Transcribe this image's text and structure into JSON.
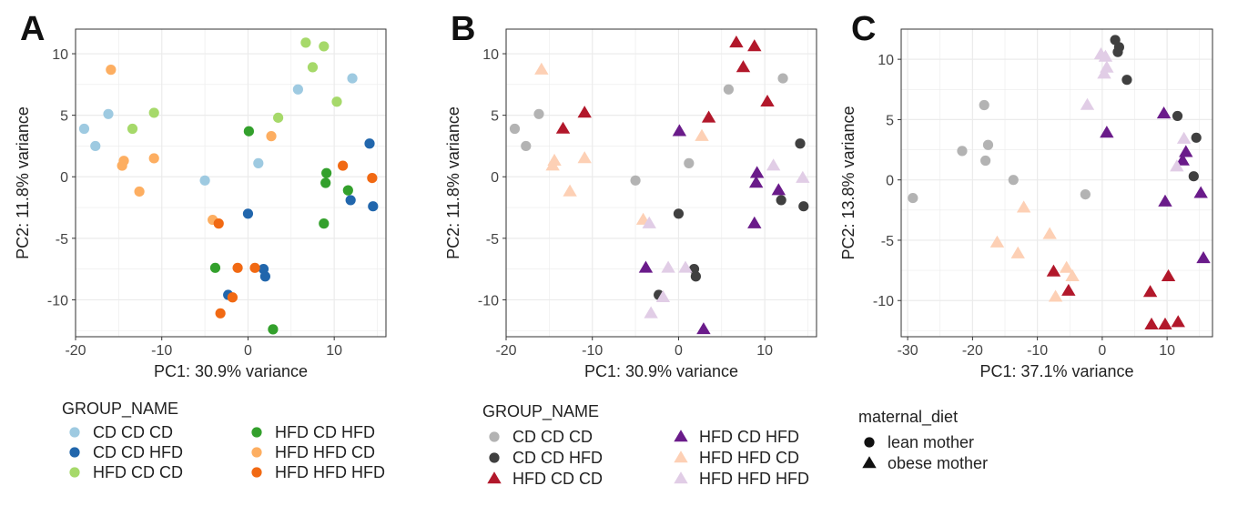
{
  "chart_data": [
    {
      "panel": "A",
      "type": "scatter",
      "xlabel": "PC1: 30.9% variance",
      "ylabel": "PC2: 11.8% variance",
      "xlim": [
        -20,
        16
      ],
      "ylim": [
        -13,
        12
      ],
      "xticks": [
        -20,
        -10,
        0,
        10
      ],
      "yticks": [
        -10,
        -5,
        0,
        5,
        10
      ],
      "grid": true,
      "legend": {
        "title": "GROUP_NAME",
        "placement": "bottom",
        "entries": [
          {
            "label": "CD CD CD",
            "color": "#9ecae1",
            "shape": "circle"
          },
          {
            "label": "CD CD HFD",
            "color": "#2166ac",
            "shape": "circle"
          },
          {
            "label": "HFD CD CD",
            "color": "#a6d96a",
            "shape": "circle"
          },
          {
            "label": "HFD CD HFD",
            "color": "#33a02c",
            "shape": "circle"
          },
          {
            "label": "HFD HFD CD",
            "color": "#fdae61",
            "shape": "circle"
          },
          {
            "label": "HFD HFD HFD",
            "color": "#f16913",
            "shape": "circle"
          }
        ]
      },
      "series": [
        {
          "name": "CD CD CD",
          "color": "#9ecae1",
          "shape": "circle",
          "points": [
            [
              -19,
              3.9
            ],
            [
              -17.7,
              2.5
            ],
            [
              -16.2,
              5.1
            ],
            [
              -5,
              -0.3
            ],
            [
              1.2,
              1.1
            ],
            [
              5.8,
              7.1
            ],
            [
              12.1,
              8.0
            ]
          ]
        },
        {
          "name": "CD CD HFD",
          "color": "#2166ac",
          "shape": "circle",
          "points": [
            [
              0,
              -3.0
            ],
            [
              -2.3,
              -9.6
            ],
            [
              1.8,
              -7.5
            ],
            [
              2.0,
              -8.1
            ],
            [
              14.1,
              2.7
            ],
            [
              11.9,
              -1.9
            ],
            [
              14.5,
              -2.4
            ]
          ]
        },
        {
          "name": "HFD CD CD",
          "color": "#a6d96a",
          "shape": "circle",
          "points": [
            [
              -13.4,
              3.9
            ],
            [
              -10.9,
              5.2
            ],
            [
              3.5,
              4.8
            ],
            [
              6.7,
              10.9
            ],
            [
              7.5,
              8.9
            ],
            [
              8.8,
              10.6
            ],
            [
              10.3,
              6.1
            ]
          ]
        },
        {
          "name": "HFD CD HFD",
          "color": "#33a02c",
          "shape": "circle",
          "points": [
            [
              0.1,
              3.7
            ],
            [
              -3.8,
              -7.4
            ],
            [
              2.9,
              -12.4
            ],
            [
              9.1,
              0.3
            ],
            [
              9.0,
              -0.5
            ],
            [
              11.6,
              -1.1
            ],
            [
              8.8,
              -3.8
            ]
          ]
        },
        {
          "name": "HFD HFD CD",
          "color": "#fdae61",
          "shape": "circle",
          "points": [
            [
              -15.9,
              8.7
            ],
            [
              -14.4,
              1.3
            ],
            [
              -14.6,
              0.9
            ],
            [
              -12.6,
              -1.2
            ],
            [
              -10.9,
              1.5
            ],
            [
              -4.1,
              -3.5
            ],
            [
              2.7,
              3.3
            ]
          ]
        },
        {
          "name": "HFD HFD HFD",
          "color": "#f16913",
          "shape": "circle",
          "points": [
            [
              -3.4,
              -3.8
            ],
            [
              -1.2,
              -7.4
            ],
            [
              0.8,
              -7.4
            ],
            [
              -1.8,
              -9.8
            ],
            [
              -3.2,
              -11.1
            ],
            [
              11.0,
              0.9
            ],
            [
              14.4,
              -0.1
            ]
          ]
        }
      ]
    },
    {
      "panel": "B",
      "type": "scatter",
      "xlabel": "PC1: 30.9% variance",
      "ylabel": "PC2: 11.8% variance",
      "xlim": [
        -20,
        16
      ],
      "ylim": [
        -13,
        12
      ],
      "xticks": [
        -20,
        -10,
        0,
        10
      ],
      "yticks": [
        -10,
        -5,
        0,
        5,
        10
      ],
      "grid": true,
      "legend": {
        "title": "GROUP_NAME",
        "placement": "bottom",
        "entries": [
          {
            "label": "CD CD CD",
            "color": "#b3b3b3",
            "shape": "circle"
          },
          {
            "label": "CD CD HFD",
            "color": "#404040",
            "shape": "circle"
          },
          {
            "label": "HFD CD CD",
            "color": "#b2182b",
            "shape": "triangle"
          },
          {
            "label": "HFD CD HFD",
            "color": "#6a1b8a",
            "shape": "triangle"
          },
          {
            "label": "HFD HFD CD",
            "color": "#fdd0b5",
            "shape": "triangle"
          },
          {
            "label": "HFD HFD HFD",
            "color": "#e1cde6",
            "shape": "triangle"
          }
        ]
      },
      "series": [
        {
          "name": "CD CD CD",
          "color": "#b3b3b3",
          "shape": "circle",
          "points": [
            [
              -19,
              3.9
            ],
            [
              -17.7,
              2.5
            ],
            [
              -16.2,
              5.1
            ],
            [
              -5,
              -0.3
            ],
            [
              1.2,
              1.1
            ],
            [
              5.8,
              7.1
            ],
            [
              12.1,
              8.0
            ]
          ]
        },
        {
          "name": "CD CD HFD",
          "color": "#404040",
          "shape": "circle",
          "points": [
            [
              0,
              -3.0
            ],
            [
              -2.3,
              -9.6
            ],
            [
              1.8,
              -7.5
            ],
            [
              2.0,
              -8.1
            ],
            [
              14.1,
              2.7
            ],
            [
              11.9,
              -1.9
            ],
            [
              14.5,
              -2.4
            ]
          ]
        },
        {
          "name": "HFD CD CD",
          "color": "#b2182b",
          "shape": "triangle",
          "points": [
            [
              -13.4,
              3.9
            ],
            [
              -10.9,
              5.2
            ],
            [
              3.5,
              4.8
            ],
            [
              6.7,
              10.9
            ],
            [
              7.5,
              8.9
            ],
            [
              8.8,
              10.6
            ],
            [
              10.3,
              6.1
            ]
          ]
        },
        {
          "name": "HFD CD HFD",
          "color": "#6a1b8a",
          "shape": "triangle",
          "points": [
            [
              0.1,
              3.7
            ],
            [
              -3.8,
              -7.4
            ],
            [
              2.9,
              -12.4
            ],
            [
              9.1,
              0.3
            ],
            [
              9.0,
              -0.5
            ],
            [
              11.6,
              -1.1
            ],
            [
              8.8,
              -3.8
            ]
          ]
        },
        {
          "name": "HFD HFD CD",
          "color": "#fdd0b5",
          "shape": "triangle",
          "points": [
            [
              -15.9,
              8.7
            ],
            [
              -14.4,
              1.3
            ],
            [
              -14.6,
              0.9
            ],
            [
              -12.6,
              -1.2
            ],
            [
              -10.9,
              1.5
            ],
            [
              -4.1,
              -3.5
            ],
            [
              2.7,
              3.3
            ]
          ]
        },
        {
          "name": "HFD HFD HFD",
          "color": "#e1cde6",
          "shape": "triangle",
          "points": [
            [
              -3.4,
              -3.8
            ],
            [
              -1.2,
              -7.4
            ],
            [
              0.8,
              -7.4
            ],
            [
              -1.8,
              -9.8
            ],
            [
              -3.2,
              -11.1
            ],
            [
              11.0,
              0.9
            ],
            [
              14.4,
              -0.1
            ]
          ]
        }
      ]
    },
    {
      "panel": "C",
      "type": "scatter",
      "xlabel": "PC1: 37.1% variance",
      "ylabel": "PC2: 13.8% variance",
      "xlim": [
        -31,
        17
      ],
      "ylim": [
        -13,
        12.5
      ],
      "xticks": [
        -30,
        -20,
        -10,
        0,
        10
      ],
      "yticks": [
        -10,
        -5,
        0,
        5,
        10
      ],
      "grid": true,
      "legend": {
        "title": "maternal_diet",
        "placement": "bottom",
        "entries": [
          {
            "label": "lean mother",
            "color": "#111111",
            "shape": "circle"
          },
          {
            "label": "obese mother",
            "color": "#111111",
            "shape": "triangle"
          }
        ]
      },
      "series": [
        {
          "name": "CD CD CD",
          "color": "#b3b3b3",
          "shape": "circle",
          "points": [
            [
              -29.2,
              -1.5
            ],
            [
              -21.6,
              2.4
            ],
            [
              -18.2,
              6.2
            ],
            [
              -17.6,
              2.9
            ],
            [
              -18.0,
              1.6
            ],
            [
              -13.7,
              0.0
            ],
            [
              -2.6,
              -1.2
            ]
          ]
        },
        {
          "name": "CD CD HFD",
          "color": "#404040",
          "shape": "circle",
          "points": [
            [
              2.0,
              11.6
            ],
            [
              2.6,
              11.0
            ],
            [
              2.4,
              10.6
            ],
            [
              3.8,
              8.3
            ],
            [
              11.6,
              5.3
            ],
            [
              14.5,
              3.5
            ],
            [
              14.1,
              0.3
            ]
          ]
        },
        {
          "name": "HFD CD CD",
          "color": "#b2182b",
          "shape": "triangle",
          "points": [
            [
              -7.5,
              -7.6
            ],
            [
              -5.2,
              -9.2
            ],
            [
              7.4,
              -9.3
            ],
            [
              10.2,
              -8.0
            ],
            [
              7.6,
              -12.0
            ],
            [
              9.7,
              -12.0
            ],
            [
              11.7,
              -11.8
            ]
          ]
        },
        {
          "name": "HFD CD HFD",
          "color": "#6a1b8a",
          "shape": "triangle",
          "points": [
            [
              0.7,
              3.9
            ],
            [
              9.5,
              5.5
            ],
            [
              12.9,
              2.3
            ],
            [
              12.4,
              1.6
            ],
            [
              15.2,
              -1.1
            ],
            [
              9.7,
              -1.8
            ],
            [
              15.6,
              -6.5
            ]
          ]
        },
        {
          "name": "HFD HFD CD",
          "color": "#fdd0b5",
          "shape": "triangle",
          "points": [
            [
              -16.2,
              -5.2
            ],
            [
              -13.0,
              -6.1
            ],
            [
              -12.1,
              -2.3
            ],
            [
              -8.1,
              -4.5
            ],
            [
              -5.5,
              -7.3
            ],
            [
              -4.6,
              -8.0
            ],
            [
              -7.2,
              -9.7
            ]
          ]
        },
        {
          "name": "HFD HFD HFD",
          "color": "#e1cde6",
          "shape": "triangle",
          "points": [
            [
              -0.2,
              10.4
            ],
            [
              0.5,
              10.2
            ],
            [
              0.3,
              8.8
            ],
            [
              0.7,
              9.3
            ],
            [
              -2.3,
              6.2
            ],
            [
              12.6,
              3.4
            ],
            [
              11.5,
              1.1
            ]
          ]
        }
      ]
    }
  ]
}
